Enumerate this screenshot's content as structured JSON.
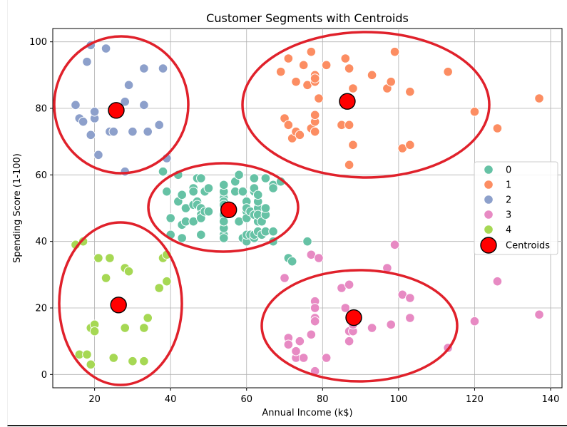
{
  "chart_data": {
    "type": "scatter",
    "title": "Customer Segments with Centroids",
    "xlabel": "Annual Income (k$)",
    "ylabel": "Spending Score (1-100)",
    "xlim": [
      9,
      143
    ],
    "ylim": [
      -4,
      104
    ],
    "xticks": [
      20,
      40,
      60,
      80,
      100,
      120,
      140
    ],
    "yticks": [
      0,
      20,
      40,
      60,
      80,
      100
    ],
    "grid": true,
    "legend_position": "center-right",
    "series": [
      {
        "name": "0",
        "color": "#66c2a5",
        "points": [
          [
            38,
            61
          ],
          [
            39,
            55
          ],
          [
            40,
            47
          ],
          [
            40,
            42
          ],
          [
            42,
            52
          ],
          [
            42,
            60
          ],
          [
            43,
            54
          ],
          [
            43,
            45
          ],
          [
            43,
            41
          ],
          [
            44,
            50
          ],
          [
            44,
            46
          ],
          [
            46,
            51
          ],
          [
            46,
            46
          ],
          [
            46,
            56
          ],
          [
            46,
            55
          ],
          [
            47,
            52
          ],
          [
            47,
            59
          ],
          [
            47,
            51
          ],
          [
            48,
            59
          ],
          [
            48,
            50
          ],
          [
            48,
            48
          ],
          [
            48,
            47
          ],
          [
            48,
            42
          ],
          [
            49,
            49
          ],
          [
            49,
            55
          ],
          [
            50,
            56
          ],
          [
            50,
            49
          ],
          [
            54,
            47
          ],
          [
            54,
            54
          ],
          [
            54,
            53
          ],
          [
            54,
            48
          ],
          [
            54,
            52
          ],
          [
            54,
            42
          ],
          [
            54,
            51
          ],
          [
            54,
            55
          ],
          [
            54,
            41
          ],
          [
            54,
            44
          ],
          [
            54,
            57
          ],
          [
            54,
            46
          ],
          [
            57,
            58
          ],
          [
            57,
            55
          ],
          [
            58,
            60
          ],
          [
            58,
            46
          ],
          [
            59,
            55
          ],
          [
            59,
            41
          ],
          [
            60,
            49
          ],
          [
            60,
            40
          ],
          [
            60,
            42
          ],
          [
            60,
            52
          ],
          [
            60,
            47
          ],
          [
            60,
            50
          ],
          [
            61,
            42
          ],
          [
            61,
            49
          ],
          [
            62,
            41
          ],
          [
            62,
            48
          ],
          [
            62,
            59
          ],
          [
            62,
            55
          ],
          [
            62,
            56
          ],
          [
            62,
            42
          ],
          [
            63,
            50
          ],
          [
            63,
            46
          ],
          [
            63,
            43
          ],
          [
            63,
            48
          ],
          [
            63,
            52
          ],
          [
            63,
            54
          ],
          [
            64,
            42
          ],
          [
            64,
            46
          ],
          [
            65,
            48
          ],
          [
            65,
            50
          ],
          [
            65,
            43
          ],
          [
            65,
            59
          ],
          [
            67,
            43
          ],
          [
            67,
            57
          ],
          [
            67,
            56
          ],
          [
            67,
            40
          ],
          [
            69,
            58
          ],
          [
            71,
            35
          ],
          [
            72,
            34
          ],
          [
            76,
            40
          ]
        ]
      },
      {
        "name": "1",
        "color": "#fc8d62",
        "points": [
          [
            69,
            91
          ],
          [
            70,
            77
          ],
          [
            71,
            95
          ],
          [
            71,
            75
          ],
          [
            72,
            71
          ],
          [
            73,
            88
          ],
          [
            73,
            73
          ],
          [
            74,
            72
          ],
          [
            75,
            93
          ],
          [
            76,
            87
          ],
          [
            77,
            97
          ],
          [
            77,
            74
          ],
          [
            78,
            90
          ],
          [
            78,
            88
          ],
          [
            78,
            76
          ],
          [
            78,
            89
          ],
          [
            78,
            78
          ],
          [
            78,
            73
          ],
          [
            79,
            83
          ],
          [
            81,
            93
          ],
          [
            85,
            75
          ],
          [
            86,
            95
          ],
          [
            87,
            63
          ],
          [
            87,
            75
          ],
          [
            87,
            92
          ],
          [
            88,
            86
          ],
          [
            88,
            69
          ],
          [
            93,
            90
          ],
          [
            97,
            86
          ],
          [
            98,
            88
          ],
          [
            99,
            97
          ],
          [
            101,
            68
          ],
          [
            103,
            85
          ],
          [
            103,
            69
          ],
          [
            113,
            91
          ],
          [
            120,
            79
          ],
          [
            126,
            74
          ],
          [
            137,
            83
          ]
        ]
      },
      {
        "name": "2",
        "color": "#8da0cb",
        "points": [
          [
            15,
            81
          ],
          [
            16,
            77
          ],
          [
            17,
            76
          ],
          [
            18,
            94
          ],
          [
            19,
            72
          ],
          [
            19,
            99
          ],
          [
            20,
            77
          ],
          [
            20,
            79
          ],
          [
            21,
            66
          ],
          [
            23,
            98
          ],
          [
            24,
            73
          ],
          [
            25,
            73
          ],
          [
            28,
            82
          ],
          [
            28,
            61
          ],
          [
            29,
            87
          ],
          [
            30,
            73
          ],
          [
            33,
            92
          ],
          [
            33,
            81
          ],
          [
            34,
            73
          ],
          [
            37,
            75
          ],
          [
            38,
            92
          ],
          [
            39,
            65
          ]
        ]
      },
      {
        "name": "3",
        "color": "#e78ac3",
        "points": [
          [
            70,
            29
          ],
          [
            71,
            11
          ],
          [
            71,
            9
          ],
          [
            73,
            5
          ],
          [
            73,
            7
          ],
          [
            74,
            10
          ],
          [
            75,
            5
          ],
          [
            77,
            12
          ],
          [
            77,
            36
          ],
          [
            78,
            22
          ],
          [
            78,
            17
          ],
          [
            78,
            20
          ],
          [
            78,
            16
          ],
          [
            78,
            1
          ],
          [
            79,
            35
          ],
          [
            81,
            5
          ],
          [
            85,
            26
          ],
          [
            86,
            20
          ],
          [
            87,
            27
          ],
          [
            87,
            13
          ],
          [
            87,
            10
          ],
          [
            88,
            13
          ],
          [
            88,
            15
          ],
          [
            93,
            14
          ],
          [
            97,
            32
          ],
          [
            98,
            15
          ],
          [
            99,
            39
          ],
          [
            101,
            24
          ],
          [
            103,
            17
          ],
          [
            103,
            23
          ],
          [
            113,
            8
          ],
          [
            120,
            16
          ],
          [
            126,
            28
          ],
          [
            137,
            18
          ]
        ]
      },
      {
        "name": "4",
        "color": "#a6d854",
        "points": [
          [
            15,
            39
          ],
          [
            16,
            6
          ],
          [
            17,
            40
          ],
          [
            18,
            6
          ],
          [
            19,
            3
          ],
          [
            19,
            14
          ],
          [
            20,
            15
          ],
          [
            20,
            13
          ],
          [
            21,
            35
          ],
          [
            23,
            29
          ],
          [
            24,
            35
          ],
          [
            25,
            5
          ],
          [
            28,
            14
          ],
          [
            28,
            32
          ],
          [
            29,
            31
          ],
          [
            30,
            4
          ],
          [
            33,
            4
          ],
          [
            33,
            14
          ],
          [
            34,
            17
          ],
          [
            37,
            26
          ],
          [
            38,
            35
          ],
          [
            39,
            36
          ],
          [
            39,
            28
          ]
        ]
      }
    ],
    "centroids": {
      "name": "Centroids",
      "color": "#ff0000",
      "points": [
        [
          55.3,
          49.5
        ],
        [
          86.5,
          82.1
        ],
        [
          25.7,
          79.4
        ],
        [
          88.2,
          17.1
        ],
        [
          26.3,
          20.9
        ]
      ]
    }
  }
}
